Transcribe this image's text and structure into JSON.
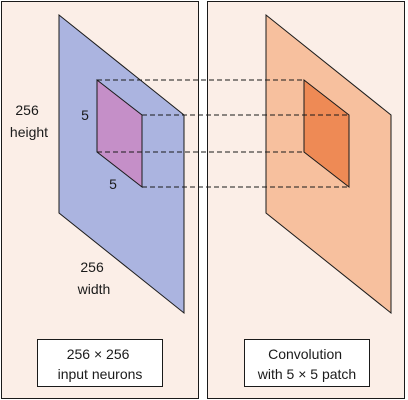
{
  "left_panel": {
    "height_label": [
      "256",
      "height"
    ],
    "width_label": [
      "256",
      "width"
    ],
    "patch_side_label": "5",
    "patch_bottom_label": "5",
    "caption": [
      "256 × 256",
      "input neurons"
    ]
  },
  "right_panel": {
    "caption": [
      "Convolution",
      "with 5 × 5 patch"
    ]
  },
  "colors": {
    "panel_fill": "#fbeee7",
    "input_plane": "#abb4e0",
    "patch": "#c58fc8",
    "output_plane": "#f7c09e",
    "output_patch": "#ee8a55",
    "stroke": "#1a1a1a"
  }
}
